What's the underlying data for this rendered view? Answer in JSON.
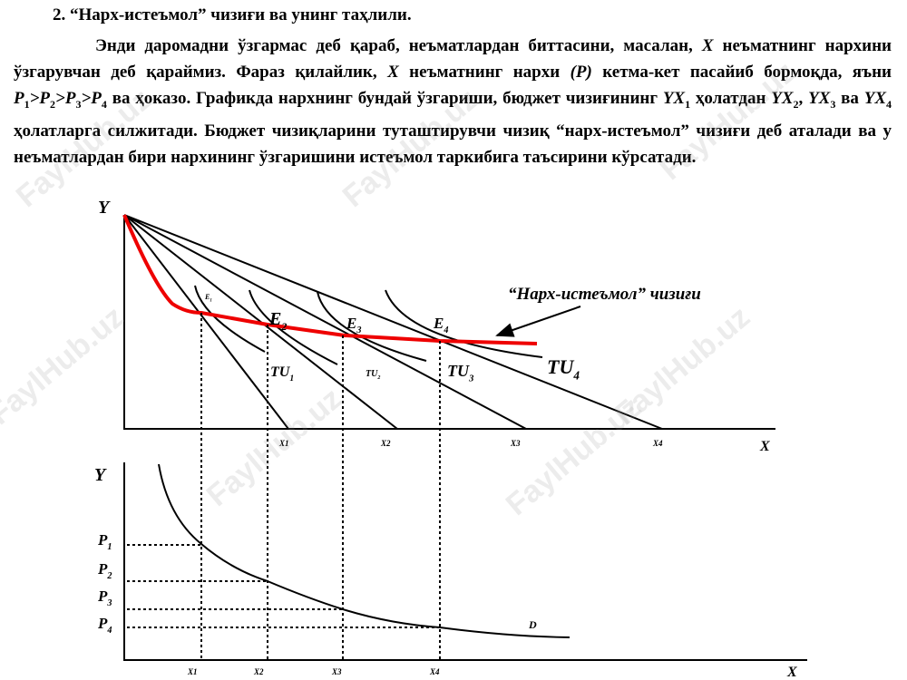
{
  "heading": "2. “Нарх-истеъмол” чизиғи ва унинг таҳлили.",
  "paragraph": [
    "Энди даромадни ўзгармас деб қараб, неъматлардан биттасини, масалан, ",
    {
      "italic": "X"
    },
    " неъматнинг нархини ўзгарувчан деб қараймиз. Фараз қилайлик, ",
    {
      "italic": "X"
    },
    " неъматнинг нархи ",
    {
      "italic": "(P)"
    },
    " кетма-кет пасайиб бормоқда, яъни ",
    {
      "italic": "P"
    },
    {
      "sub": "1"
    },
    {
      "italic": ">P"
    },
    {
      "sub": "2"
    },
    {
      "italic": ">P"
    },
    {
      "sub": "3"
    },
    {
      "italic": ">P"
    },
    {
      "sub": "4"
    },
    " ва ҳоказо. Графикда нархнинг бундай ўзгариши, бюджет чизиғининг ",
    {
      "italic": "YX"
    },
    {
      "sub": "1"
    },
    " ҳолатдан ",
    {
      "italic": "YX"
    },
    {
      "sub": "2"
    },
    ", ",
    {
      "italic": "YX"
    },
    {
      "sub": "3"
    },
    " ва ",
    {
      "italic": "YX"
    },
    {
      "sub": "4"
    },
    " ҳолатларга силжитади. Бюджет чизиқларини туташтирувчи чизиқ “нарх-истеъмол” чизиғи деб аталади ва у неъматлардан бири нархининг ўзгаришини истеъмол таркибига таъсирини кўрсатади."
  ],
  "top_diagram": {
    "y_axis": "Y",
    "x_axis": "X",
    "curve_label": "“Нарх-истеъмол” чизиғи",
    "points": [
      {
        "base": "E",
        "sub": "1"
      },
      {
        "base": "E",
        "sub": "2"
      },
      {
        "base": "E",
        "sub": "3"
      },
      {
        "base": "E",
        "sub": "4"
      }
    ],
    "utilities": [
      {
        "base": "TU",
        "sub": "1"
      },
      {
        "base": "TU",
        "sub": "2"
      },
      {
        "base": "TU",
        "sub": "3"
      },
      {
        "base": "TU",
        "sub": "4"
      }
    ],
    "x_marks": [
      "X1",
      "X2",
      "X3",
      "X4"
    ]
  },
  "bottom_diagram": {
    "y_axis": "Y",
    "x_axis": "X",
    "prices": [
      {
        "base": "P",
        "sub": "1"
      },
      {
        "base": "P",
        "sub": "2"
      },
      {
        "base": "P",
        "sub": "3"
      },
      {
        "base": "P",
        "sub": "4"
      }
    ],
    "x_marks": [
      "X1",
      "X2",
      "X3",
      "X4"
    ],
    "curve_label": "D"
  },
  "watermark": "FaylHub.uz"
}
